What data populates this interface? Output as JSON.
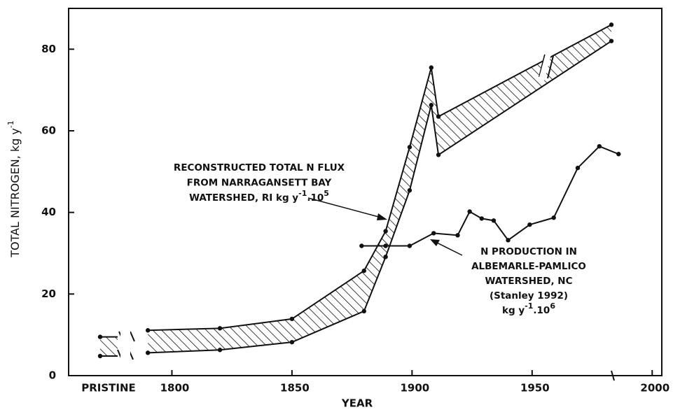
{
  "chart_data": {
    "type": "line",
    "ylabel": [
      "TOTAL NITROGEN, kg y",
      "-1"
    ],
    "xlabel": "YEAR",
    "xlim": [
      1757,
      2004
    ],
    "xticks": [
      1800,
      1850,
      1900,
      1950,
      2000
    ],
    "ylim": [
      0,
      90
    ],
    "yticks": [
      0,
      20,
      40,
      60,
      80
    ],
    "pristine": {
      "label": "PRISTINE",
      "upper": 9.5,
      "lower": 4.8
    },
    "band": {
      "color": "#111111",
      "x": [
        1790,
        1820,
        1850,
        1880,
        1889,
        1899,
        1908,
        1911,
        1983
      ],
      "upper": [
        11.1,
        11.6,
        13.9,
        25.7,
        35.4,
        56,
        75.5,
        63.5,
        86
      ],
      "lower": [
        5.6,
        6.3,
        8.2,
        15.8,
        29.1,
        45.4,
        66.3,
        54.1,
        82
      ]
    },
    "series": [
      {
        "color": "#111111",
        "x": [
          1879,
          1889,
          1899,
          1909,
          1919,
          1924,
          1929,
          1934,
          1940,
          1949,
          1959,
          1969,
          1978,
          1986
        ],
        "values": [
          31.8,
          31.8,
          31.8,
          34.9,
          34.4,
          40.2,
          38.5,
          38,
          33.2,
          37,
          38.7,
          50.9,
          56.2,
          54.3
        ]
      }
    ],
    "annotations": [
      {
        "lines": [
          [
            "RECONSTRUCTED TOTAL N FLUX"
          ],
          [
            "FROM NARRAGANSETT BAY"
          ],
          [
            "WATERSHED, RI kg y",
            "-1",
            ".10",
            "5"
          ]
        ]
      },
      {
        "lines": [
          [
            "N PRODUCTION IN"
          ],
          [
            "ALBEMARLE-PAMLICO"
          ],
          [
            "WATERSHED, NC"
          ],
          [
            "(Stanley 1992)"
          ],
          [
            "kg y",
            "-1",
            ".10",
            "6"
          ]
        ]
      }
    ]
  }
}
